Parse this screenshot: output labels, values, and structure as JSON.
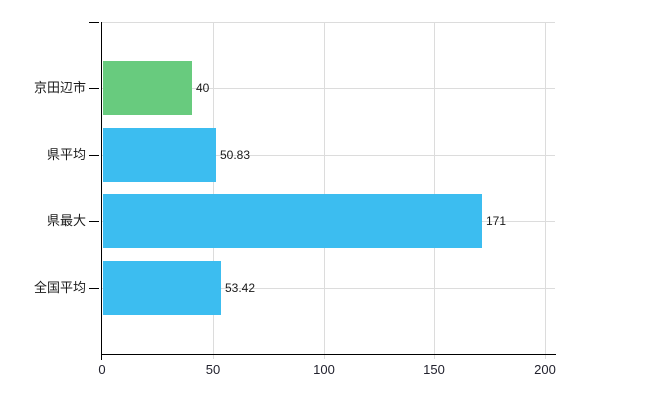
{
  "chart_data": {
    "type": "bar",
    "orientation": "horizontal",
    "title": "",
    "xlabel": "",
    "ylabel": "",
    "categories": [
      "京田辺市",
      "県平均",
      "県最大",
      "全国平均"
    ],
    "values": [
      40,
      50.83,
      171,
      53.42
    ],
    "value_labels": [
      "40",
      "50.83",
      "171",
      "53.42"
    ],
    "bar_colors": [
      "#68CB7E",
      "#3CBDF0",
      "#3CBDF0",
      "#3CBDF0"
    ],
    "x_ticks": [
      0,
      50,
      100,
      150,
      200
    ],
    "x_tick_labels": [
      "0",
      "50",
      "100",
      "150",
      "200"
    ],
    "xlim": [
      0,
      200
    ],
    "grid": true,
    "legend": false
  },
  "colors": {
    "highlight_bar": "#68CB7E",
    "default_bar": "#3CBDF0",
    "gridline": "#dcdcdc",
    "axis": "#000000",
    "text": "#1a1a1a",
    "background": "#ffffff"
  }
}
